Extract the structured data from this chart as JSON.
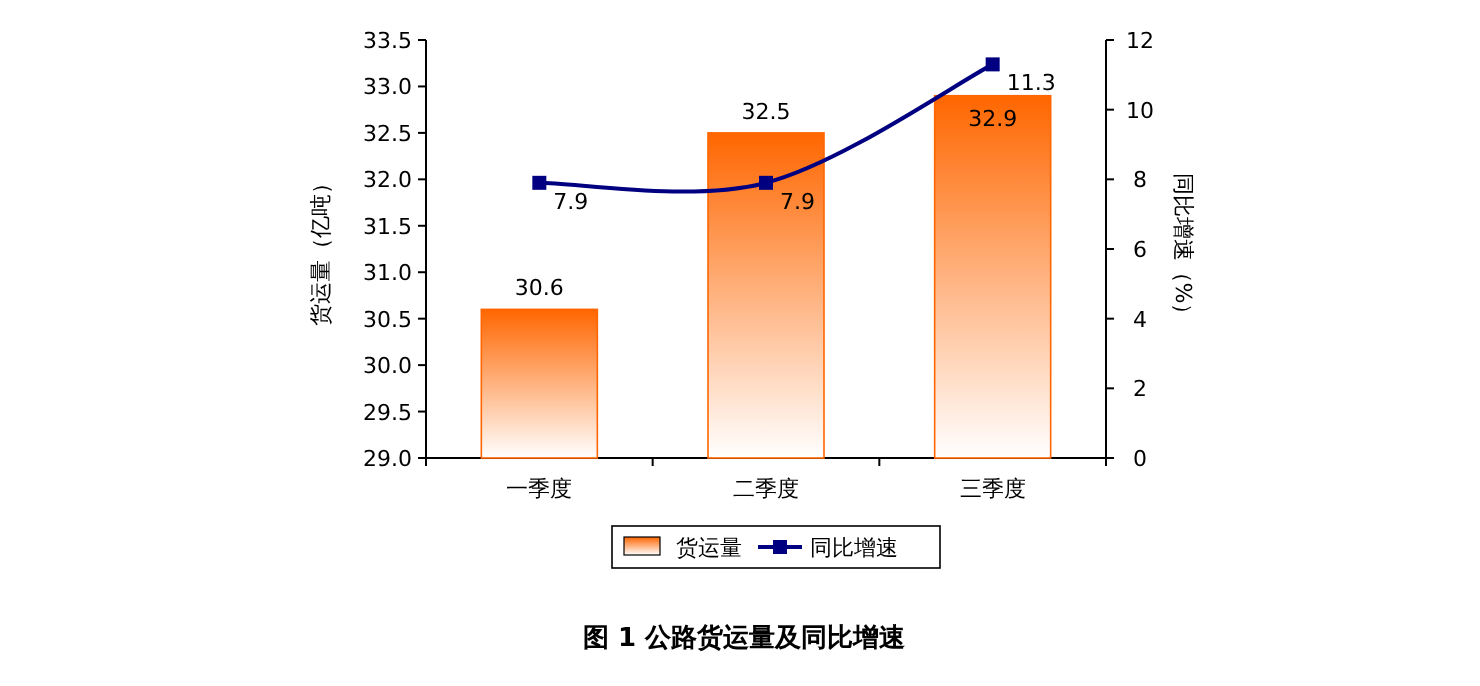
{
  "chart_data": {
    "type": "bar",
    "title": "图 1 公路货运量及同比增速",
    "categories": [
      "一季度",
      "二季度",
      "三季度"
    ],
    "series": [
      {
        "name": "货运量",
        "color": "#ff6600",
        "values": [
          30.6,
          32.5,
          32.9
        ]
      },
      {
        "name": "同比增速",
        "type": "line",
        "axis": "y2",
        "color": "#000080",
        "marker": "square",
        "line_style": "solid",
        "values": [
          7.9,
          7.9,
          11.3
        ]
      }
    ],
    "ylabel": "货运量（亿吨）",
    "y2label": "同比增速（%）",
    "ylim": [
      29,
      33.5
    ],
    "yticks": [
      {
        "value": 29,
        "label": "29.0"
      },
      {
        "value": 29.5,
        "label": "29.5"
      },
      {
        "value": 30,
        "label": "30.0"
      },
      {
        "value": 30.5,
        "label": "30.5"
      },
      {
        "value": 31,
        "label": "31.0"
      },
      {
        "value": 31.5,
        "label": "31.5"
      },
      {
        "value": 32,
        "label": "32.0"
      },
      {
        "value": 32.5,
        "label": "32.5"
      },
      {
        "value": 33,
        "label": "33.0"
      },
      {
        "value": 33.5,
        "label": "33.5"
      }
    ],
    "y2lim": [
      0,
      12
    ],
    "y2ticks": [
      0,
      2,
      4,
      6,
      8,
      10,
      12
    ],
    "legend": "bottom",
    "data_labels": true
  }
}
